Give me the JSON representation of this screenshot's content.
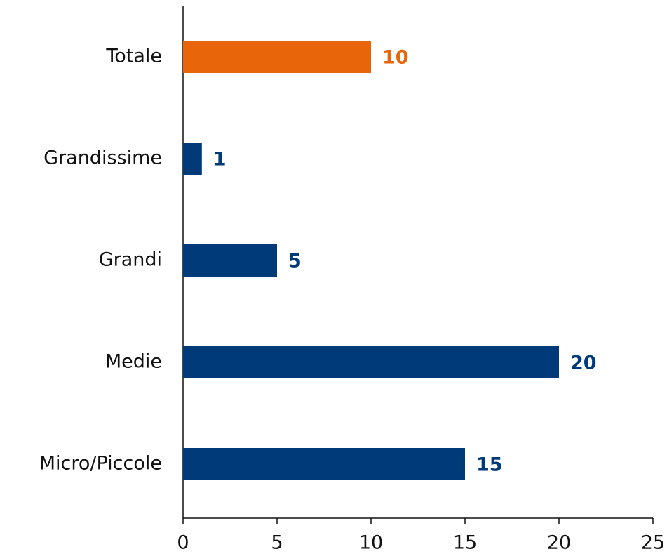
{
  "chart_data": {
    "type": "hbar",
    "categories": [
      "Totale",
      "Grandissime",
      "Grandi",
      "Medie",
      "Micro/Piccole"
    ],
    "values": [
      10,
      1,
      5,
      20,
      15
    ],
    "colors": [
      "#e8650a",
      "#003a78",
      "#003a78",
      "#003a78",
      "#003a78"
    ],
    "xlim": [
      0,
      25
    ],
    "xticks": [
      0,
      5,
      10,
      15,
      20,
      25
    ],
    "grid": false
  }
}
